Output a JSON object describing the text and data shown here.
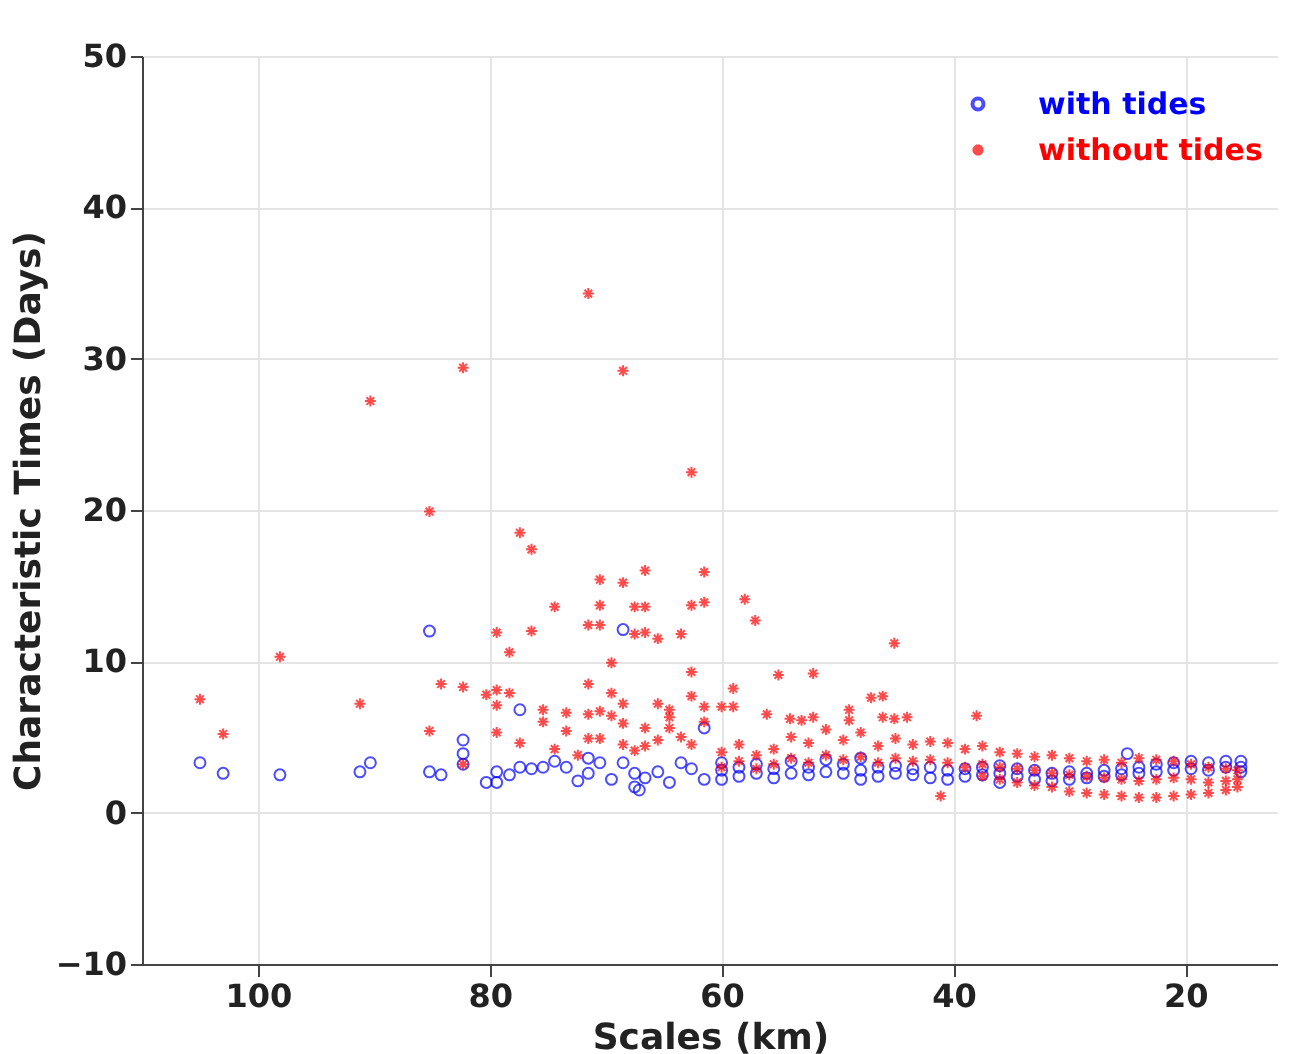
{
  "chart_data": {
    "type": "scatter",
    "xlabel": "Scales (km)",
    "ylabel": "Characteristic Times (Days)",
    "xlim": [
      110,
      12
    ],
    "xticks": [
      100,
      80,
      60,
      40,
      20
    ],
    "ylim": [
      -10,
      50
    ],
    "yticks": [
      -10,
      0,
      10,
      20,
      30,
      40,
      50
    ],
    "grid": true,
    "legend": "top right",
    "series": [
      {
        "name": "with tides",
        "color": "#0000ff",
        "marker": "circle",
        "x": [
          105.0,
          103.0,
          98.1,
          91.2,
          90.3,
          85.2,
          85.2,
          84.2,
          82.3,
          82.3,
          82.3,
          80.3,
          79.4,
          79.4,
          78.3,
          77.4,
          77.4,
          76.4,
          75.4,
          74.4,
          73.4,
          72.4,
          71.5,
          71.5,
          70.5,
          69.5,
          68.5,
          68.5,
          67.5,
          67.5,
          66.6,
          65.5,
          64.5,
          63.5,
          62.6,
          61.5,
          61.5,
          67.1,
          60,
          60,
          60,
          58.5,
          58.5,
          57,
          57,
          55.5,
          55.5,
          54,
          54,
          52.5,
          52.5,
          51,
          51,
          49.5,
          49.5,
          48,
          48,
          48,
          46.5,
          46.5,
          45,
          45,
          43.5,
          43.5,
          42,
          42,
          40.5,
          40.5,
          39,
          39,
          37.5,
          37.5,
          36,
          36,
          36,
          34.5,
          34.5,
          33,
          33,
          31.5,
          31.5,
          30,
          30,
          28.5,
          28.5,
          27,
          27,
          25.5,
          25.5,
          25.0,
          24,
          24,
          22.5,
          22.5,
          21,
          21,
          19.5,
          19.5,
          18,
          18,
          16.5,
          16.5,
          15.2,
          15.2,
          15.2
        ],
        "values": [
          3.3,
          2.6,
          2.5,
          2.7,
          3.3,
          12.0,
          2.7,
          2.5,
          4.8,
          3.9,
          3.2,
          2.0,
          2.0,
          2.7,
          2.5,
          6.8,
          3.0,
          2.9,
          3.0,
          3.4,
          3.0,
          2.1,
          3.6,
          2.6,
          3.3,
          2.2,
          12.1,
          3.3,
          1.7,
          2.6,
          2.3,
          2.7,
          2.0,
          3.3,
          2.9,
          5.6,
          2.2,
          1.5,
          2.8,
          3.3,
          2.2,
          3.0,
          2.4,
          3.2,
          2.6,
          2.9,
          2.3,
          3.4,
          2.6,
          3.0,
          2.5,
          3.5,
          2.7,
          3.2,
          2.6,
          3.6,
          2.8,
          2.2,
          3.0,
          2.4,
          3.1,
          2.6,
          2.9,
          2.5,
          3.0,
          2.3,
          2.8,
          2.2,
          2.9,
          2.4,
          3.0,
          2.5,
          3.1,
          2.6,
          2.0,
          2.9,
          2.4,
          2.8,
          2.2,
          2.6,
          2.1,
          2.7,
          2.2,
          2.6,
          2.3,
          2.8,
          2.4,
          2.9,
          2.5,
          3.9,
          3.0,
          2.6,
          3.2,
          2.7,
          3.3,
          2.8,
          3.4,
          2.9,
          3.3,
          2.8,
          3.4,
          3.0,
          3.4,
          3.0,
          2.7
        ]
      },
      {
        "name": "without tides",
        "color": "#ff0000",
        "marker": "cross",
        "x": [
          105.0,
          103.0,
          98.1,
          91.2,
          90.3,
          85.2,
          85.2,
          84.2,
          82.3,
          82.3,
          82.3,
          80.3,
          79.4,
          79.4,
          79.4,
          79.4,
          78.3,
          78.3,
          77.4,
          77.4,
          76.4,
          76.4,
          75.4,
          75.4,
          74.4,
          74.4,
          73.4,
          73.4,
          72.4,
          71.5,
          71.5,
          71.5,
          71.5,
          71.5,
          70.5,
          70.5,
          70.5,
          70.5,
          70.5,
          69.5,
          69.5,
          69.5,
          68.5,
          68.5,
          68.5,
          68.5,
          68.5,
          67.5,
          67.5,
          67.5,
          66.6,
          66.6,
          66.6,
          66.6,
          66.6,
          65.5,
          65.5,
          65.5,
          64.5,
          64.5,
          64.5,
          63.5,
          63.5,
          62.6,
          62.6,
          62.6,
          62.6,
          62.6,
          61.5,
          61.5,
          61.5,
          61.5,
          58.0,
          57.1,
          55.1,
          52.1,
          45.1,
          47.1,
          46.1,
          46.1,
          45.1,
          44.0,
          49.0,
          49.0,
          54.1,
          53.1,
          52.1,
          56.1,
          59.0,
          59.0,
          60.0,
          38.0,
          41.1,
          60,
          60,
          58.5,
          58.5,
          57,
          57,
          55.5,
          55.5,
          54,
          54,
          52.5,
          52.5,
          51,
          51,
          49.5,
          49.5,
          48,
          48,
          46.5,
          46.5,
          45,
          45,
          43.5,
          43.5,
          42,
          42,
          40.5,
          40.5,
          39,
          39,
          37.5,
          37.5,
          37.5,
          36,
          36,
          36,
          34.5,
          34.5,
          34.5,
          33,
          33,
          33,
          31.5,
          31.5,
          31.5,
          30,
          30,
          30,
          28.5,
          28.5,
          28.5,
          27,
          27,
          27,
          25.5,
          25.5,
          25.5,
          24,
          24,
          24,
          22.5,
          22.5,
          22.5,
          21,
          21,
          21,
          19.5,
          19.5,
          19.5,
          18,
          18,
          18,
          16.5,
          16.5,
          16.5,
          15.5,
          15.5,
          15.5
        ],
        "values": [
          7.5,
          5.2,
          10.3,
          7.2,
          27.2,
          19.9,
          5.4,
          8.5,
          29.4,
          8.3,
          3.2,
          7.8,
          11.9,
          8.1,
          7.1,
          5.3,
          10.6,
          7.9,
          18.5,
          4.6,
          17.4,
          12.0,
          6.8,
          6.0,
          13.6,
          4.2,
          6.6,
          5.4,
          3.8,
          34.3,
          12.4,
          8.5,
          6.5,
          4.9,
          15.4,
          13.7,
          12.4,
          6.7,
          4.9,
          9.9,
          7.9,
          6.4,
          29.2,
          15.2,
          7.2,
          5.9,
          4.5,
          13.6,
          11.8,
          4.1,
          16.0,
          13.6,
          11.9,
          5.6,
          4.4,
          11.5,
          7.2,
          4.8,
          6.8,
          6.3,
          5.6,
          11.8,
          5.0,
          22.5,
          13.7,
          9.3,
          7.7,
          4.5,
          15.9,
          13.9,
          7.0,
          6.0,
          14.1,
          12.7,
          9.1,
          9.2,
          11.2,
          7.6,
          7.7,
          6.3,
          6.2,
          6.3,
          6.8,
          6.1,
          6.2,
          6.1,
          6.3,
          6.5,
          8.2,
          7.0,
          7.0,
          6.4,
          1.1,
          4.0,
          3.0,
          4.5,
          3.4,
          3.8,
          2.9,
          4.2,
          3.2,
          5.0,
          3.6,
          4.6,
          3.3,
          5.5,
          3.8,
          4.8,
          3.5,
          5.3,
          3.7,
          4.4,
          3.3,
          4.9,
          3.6,
          4.5,
          3.4,
          4.7,
          3.5,
          4.6,
          3.3,
          4.2,
          3.0,
          4.4,
          3.2,
          2.4,
          4.0,
          3.0,
          2.2,
          3.9,
          2.9,
          2.0,
          3.7,
          2.8,
          1.8,
          3.8,
          2.6,
          1.7,
          3.6,
          2.5,
          1.4,
          3.4,
          2.4,
          1.3,
          3.5,
          2.3,
          1.2,
          3.3,
          2.2,
          1.1,
          3.6,
          2.1,
          1.0,
          3.5,
          2.2,
          1.0,
          3.4,
          2.3,
          1.1,
          3.2,
          2.2,
          1.2,
          3.0,
          2.0,
          1.3,
          2.9,
          2.1,
          1.5,
          2.8,
          2.2,
          1.7
        ]
      }
    ]
  }
}
